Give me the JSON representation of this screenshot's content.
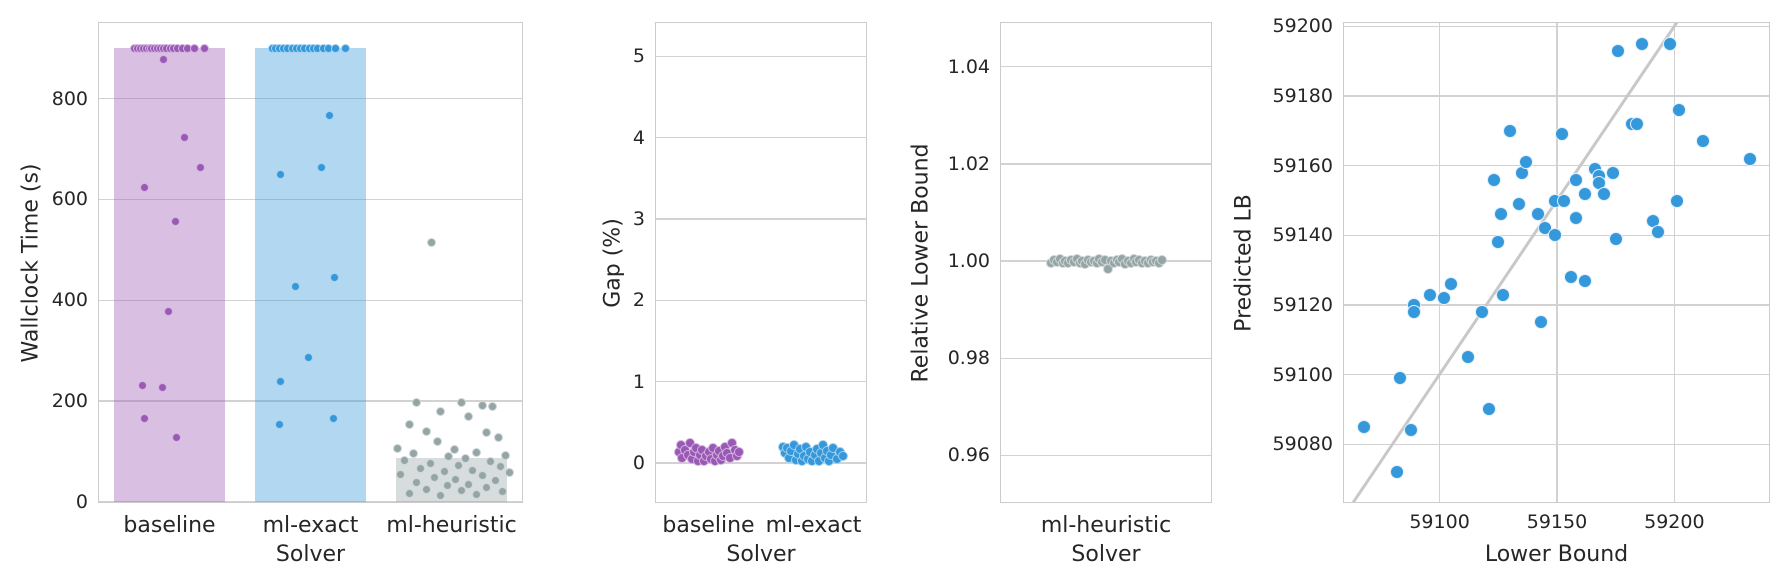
{
  "figure": {
    "background": "#ffffff",
    "text_color": "#262626",
    "grid_color": "#d2d2d2",
    "spine_color": "#cccccc"
  },
  "colors": {
    "baseline": "#9b59b6",
    "ml_exact": "#3498db",
    "ml_heuristic": "#95a5a6",
    "scatter_point": "#3498db",
    "identity_line": "#c8c8c8",
    "bar_alpha": 0.38
  },
  "chart_data": [
    {
      "id": "wallclock",
      "type": "bar",
      "subtype": "bar-with-strip-overlay",
      "xlabel": "Solver",
      "ylabel": "Wallclock Time (s)",
      "categories": [
        "baseline",
        "ml-exact",
        "ml-heuristic"
      ],
      "values": [
        900,
        900,
        87
      ],
      "bar_width_frac": 0.79,
      "ylim": [
        0,
        950
      ],
      "yticks": [
        {
          "v": 0,
          "label": "0"
        },
        {
          "v": 200,
          "label": "200"
        },
        {
          "v": 400,
          "label": "400"
        },
        {
          "v": 600,
          "label": "600"
        },
        {
          "v": 800,
          "label": "800"
        }
      ],
      "point_diameter": 9,
      "series_colors": [
        "baseline",
        "ml_exact",
        "ml_heuristic"
      ],
      "strip_points": [
        [
          [
            -0.245,
            900
          ],
          [
            -0.225,
            900
          ],
          [
            -0.205,
            900
          ],
          [
            -0.185,
            900
          ],
          [
            -0.165,
            900
          ],
          [
            -0.145,
            900
          ],
          [
            -0.125,
            900
          ],
          [
            -0.105,
            900
          ],
          [
            -0.085,
            900
          ],
          [
            -0.065,
            900
          ],
          [
            -0.045,
            900
          ],
          [
            -0.02,
            900
          ],
          [
            0.005,
            900
          ],
          [
            0.03,
            900
          ],
          [
            0.055,
            900
          ],
          [
            0.09,
            900
          ],
          [
            0.13,
            900
          ],
          [
            0.175,
            900
          ],
          [
            0.245,
            900
          ],
          [
            -0.04,
            877
          ],
          [
            0.108,
            723
          ],
          [
            0.219,
            664
          ],
          [
            -0.176,
            624
          ],
          [
            0.044,
            557
          ],
          [
            -0.009,
            378
          ],
          [
            -0.188,
            231
          ],
          [
            -0.047,
            228
          ],
          [
            -0.179,
            165
          ],
          [
            0.052,
            127
          ]
        ],
        [
          [
            -0.27,
            900
          ],
          [
            -0.245,
            900
          ],
          [
            -0.22,
            900
          ],
          [
            -0.19,
            900
          ],
          [
            -0.16,
            900
          ],
          [
            -0.13,
            900
          ],
          [
            -0.1,
            900
          ],
          [
            -0.07,
            900
          ],
          [
            -0.04,
            900
          ],
          [
            -0.01,
            900
          ],
          [
            0.02,
            900
          ],
          [
            0.05,
            900
          ],
          [
            0.09,
            900
          ],
          [
            0.13,
            900
          ],
          [
            0.18,
            900
          ],
          [
            0.25,
            900
          ],
          [
            0.132,
            766
          ],
          [
            0.08,
            664
          ],
          [
            -0.212,
            649
          ],
          [
            0.169,
            446
          ],
          [
            -0.108,
            427
          ],
          [
            -0.016,
            286
          ],
          [
            -0.214,
            238
          ],
          [
            0.164,
            165
          ],
          [
            -0.219,
            153
          ]
        ],
        [
          [
            -0.14,
            515
          ],
          [
            -0.25,
            197
          ],
          [
            0.07,
            197
          ],
          [
            0.22,
            191
          ],
          [
            0.29,
            190
          ],
          [
            -0.08,
            180
          ],
          [
            0.12,
            170
          ],
          [
            -0.3,
            154
          ],
          [
            -0.18,
            140
          ],
          [
            0.25,
            138
          ],
          [
            0.33,
            128
          ],
          [
            -0.1,
            119
          ],
          [
            -0.38,
            107
          ],
          [
            0.02,
            104
          ],
          [
            0.18,
            99
          ],
          [
            -0.27,
            97
          ],
          [
            0.38,
            93
          ],
          [
            -0.02,
            90
          ],
          [
            0.1,
            86
          ],
          [
            -0.33,
            82
          ],
          [
            0.28,
            80
          ],
          [
            -0.15,
            76
          ],
          [
            0.05,
            72
          ],
          [
            0.35,
            70
          ],
          [
            -0.22,
            66
          ],
          [
            0.15,
            63
          ],
          [
            -0.05,
            60
          ],
          [
            0.41,
            58
          ],
          [
            -0.36,
            55
          ],
          [
            0.22,
            52
          ],
          [
            -0.12,
            48
          ],
          [
            0.03,
            45
          ],
          [
            0.31,
            42
          ],
          [
            -0.25,
            38
          ],
          [
            0.12,
            35
          ],
          [
            -0.03,
            32
          ],
          [
            0.25,
            28
          ],
          [
            -0.18,
            25
          ],
          [
            0.07,
            22
          ],
          [
            0.36,
            20
          ],
          [
            -0.3,
            17
          ],
          [
            0.18,
            14
          ],
          [
            -0.08,
            12
          ]
        ]
      ]
    },
    {
      "id": "gap",
      "type": "strip",
      "xlabel": "Solver",
      "ylabel": "Gap (%)",
      "categories": [
        "baseline",
        "ml-exact"
      ],
      "ylim": [
        -0.48,
        5.41
      ],
      "yticks": [
        {
          "v": 0,
          "label": "0"
        },
        {
          "v": 1,
          "label": "1"
        },
        {
          "v": 2,
          "label": "2"
        },
        {
          "v": 3,
          "label": "3"
        },
        {
          "v": 4,
          "label": "4"
        },
        {
          "v": 5,
          "label": "5"
        }
      ],
      "point_diameter": 10,
      "series_colors": [
        "baseline",
        "ml_exact"
      ],
      "strip_points": [
        [
          [
            -0.28,
            0.13
          ],
          [
            -0.26,
            0.22
          ],
          [
            -0.25,
            0.06
          ],
          [
            -0.22,
            0.16
          ],
          [
            -0.2,
            0.1
          ],
          [
            -0.18,
            0.24
          ],
          [
            -0.16,
            0.05
          ],
          [
            -0.14,
            0.13
          ],
          [
            -0.12,
            0.18
          ],
          [
            -0.1,
            0.03
          ],
          [
            -0.08,
            0.1
          ],
          [
            -0.06,
            0.16
          ],
          [
            -0.04,
            0.02
          ],
          [
            -0.02,
            0.08
          ],
          [
            0.0,
            0.13
          ],
          [
            0.02,
            0.05
          ],
          [
            0.04,
            0.18
          ],
          [
            0.06,
            0.02
          ],
          [
            0.08,
            0.1
          ],
          [
            0.1,
            0.15
          ],
          [
            0.12,
            0.04
          ],
          [
            0.14,
            0.08
          ],
          [
            0.16,
            0.2
          ],
          [
            0.18,
            0.12
          ],
          [
            0.2,
            0.06
          ],
          [
            0.22,
            0.24
          ],
          [
            0.25,
            0.16
          ],
          [
            0.27,
            0.09
          ],
          [
            0.29,
            0.13
          ]
        ],
        [
          [
            -0.29,
            0.2
          ],
          [
            -0.27,
            0.12
          ],
          [
            -0.25,
            0.18
          ],
          [
            -0.23,
            0.06
          ],
          [
            -0.21,
            0.15
          ],
          [
            -0.19,
            0.22
          ],
          [
            -0.17,
            0.04
          ],
          [
            -0.15,
            0.11
          ],
          [
            -0.13,
            0.17
          ],
          [
            -0.11,
            0.03
          ],
          [
            -0.09,
            0.09
          ],
          [
            -0.07,
            0.2
          ],
          [
            -0.05,
            0.05
          ],
          [
            -0.03,
            0.14
          ],
          [
            -0.01,
            0.02
          ],
          [
            0.01,
            0.1
          ],
          [
            0.03,
            0.17
          ],
          [
            0.05,
            0.03
          ],
          [
            0.07,
            0.12
          ],
          [
            0.09,
            0.22
          ],
          [
            0.11,
            0.06
          ],
          [
            0.13,
            0.15
          ],
          [
            0.15,
            0.02
          ],
          [
            0.17,
            0.1
          ],
          [
            0.19,
            0.19
          ],
          [
            0.22,
            0.05
          ],
          [
            0.25,
            0.13
          ],
          [
            0.28,
            0.08
          ]
        ]
      ]
    },
    {
      "id": "rel_lb",
      "type": "strip",
      "xlabel": "Solver",
      "ylabel": "Relative Lower Bound",
      "categories": [
        "ml-heuristic"
      ],
      "ylim": [
        0.9504,
        1.049
      ],
      "yticks": [
        {
          "v": 0.96,
          "label": "0.96"
        },
        {
          "v": 0.98,
          "label": "0.98"
        },
        {
          "v": 1.0,
          "label": "1.00"
        },
        {
          "v": 1.02,
          "label": "1.02"
        },
        {
          "v": 1.04,
          "label": "1.04"
        }
      ],
      "point_diameter": 10,
      "series_colors": [
        "ml_heuristic"
      ],
      "strip_points": [
        [
          [
            -0.26,
            0.9997
          ],
          [
            -0.247,
            1.0002
          ],
          [
            -0.233,
            0.9999
          ],
          [
            -0.22,
            1.0004
          ],
          [
            -0.206,
            0.9996
          ],
          [
            -0.193,
            1.0001
          ],
          [
            -0.179,
            0.9995
          ],
          [
            -0.166,
            1.0003
          ],
          [
            -0.152,
            0.9998
          ],
          [
            -0.139,
            1.0005
          ],
          [
            -0.125,
            0.9996
          ],
          [
            -0.112,
            1.0
          ],
          [
            -0.098,
            0.9994
          ],
          [
            -0.085,
            1.0003
          ],
          [
            -0.071,
            0.9998
          ],
          [
            -0.058,
            1.0001
          ],
          [
            -0.044,
            0.9995
          ],
          [
            -0.031,
            1.0004
          ],
          [
            -0.017,
            0.9999
          ],
          [
            -0.004,
            1.0002
          ],
          [
            0.01,
            0.9984
          ],
          [
            0.023,
            1.0
          ],
          [
            0.037,
            0.9996
          ],
          [
            0.05,
            1.0003
          ],
          [
            0.064,
            0.9998
          ],
          [
            0.077,
            1.0005
          ],
          [
            0.091,
            0.9994
          ],
          [
            0.104,
            1.0001
          ],
          [
            0.118,
            0.9997
          ],
          [
            0.131,
            1.0004
          ],
          [
            0.145,
            0.9999
          ],
          [
            0.158,
            1.0002
          ],
          [
            0.172,
            0.9995
          ],
          [
            0.185,
            1.0
          ],
          [
            0.199,
            0.9997
          ],
          [
            0.212,
            1.0003
          ],
          [
            0.226,
            0.9998
          ],
          [
            0.239,
            1.0001
          ],
          [
            0.253,
            0.9996
          ],
          [
            0.266,
            1.0002
          ]
        ]
      ]
    },
    {
      "id": "pred_lb",
      "type": "scatter",
      "xlabel": "Lower Bound",
      "ylabel": "Predicted LB",
      "xlim": [
        59059.3,
        59240.3
      ],
      "ylim": [
        59063.4,
        59201
      ],
      "xticks": [
        {
          "v": 59100,
          "label": "59100"
        },
        {
          "v": 59150,
          "label": "59150"
        },
        {
          "v": 59200,
          "label": "59200"
        }
      ],
      "yticks": [
        {
          "v": 59080,
          "label": "59080"
        },
        {
          "v": 59100,
          "label": "59100"
        },
        {
          "v": 59120,
          "label": "59120"
        },
        {
          "v": 59140,
          "label": "59140"
        },
        {
          "v": 59160,
          "label": "59160"
        },
        {
          "v": 59180,
          "label": "59180"
        },
        {
          "v": 59200,
          "label": "59200"
        }
      ],
      "point_diameter": 14,
      "identity_line": {
        "x1": 59058,
        "y1": 59058,
        "x2": 59206,
        "y2": 59206
      },
      "points": [
        [
          59068,
          59085
        ],
        [
          59082,
          59072
        ],
        [
          59083,
          59099
        ],
        [
          59088,
          59084
        ],
        [
          59089,
          59120
        ],
        [
          59089,
          59118
        ],
        [
          59096,
          59123
        ],
        [
          59102,
          59122
        ],
        [
          59105,
          59126
        ],
        [
          59112,
          59105
        ],
        [
          59118,
          59118
        ],
        [
          59121,
          59090
        ],
        [
          59123,
          59156
        ],
        [
          59125,
          59138
        ],
        [
          59126,
          59146
        ],
        [
          59127,
          59123
        ],
        [
          59130,
          59170
        ],
        [
          59134,
          59149
        ],
        [
          59135,
          59158
        ],
        [
          59137,
          59161
        ],
        [
          59142,
          59146
        ],
        [
          59143,
          59115
        ],
        [
          59145,
          59142
        ],
        [
          59149,
          59140
        ],
        [
          59149,
          59150
        ],
        [
          59152,
          59169
        ],
        [
          59153,
          59150
        ],
        [
          59156,
          59128
        ],
        [
          59158,
          59156
        ],
        [
          59158,
          59145
        ],
        [
          59162,
          59152
        ],
        [
          59162,
          59127
        ],
        [
          59166,
          59159
        ],
        [
          59168,
          59157
        ],
        [
          59168,
          59155
        ],
        [
          59170,
          59152
        ],
        [
          59174,
          59158
        ],
        [
          59175,
          59139
        ],
        [
          59176,
          59193
        ],
        [
          59182,
          59172
        ],
        [
          59184,
          59172
        ],
        [
          59186,
          59195
        ],
        [
          59191,
          59144
        ],
        [
          59193,
          59141
        ],
        [
          59198,
          59195
        ],
        [
          59201,
          59150
        ],
        [
          59202,
          59176
        ],
        [
          59212,
          59167
        ],
        [
          59232,
          59162
        ]
      ]
    }
  ]
}
